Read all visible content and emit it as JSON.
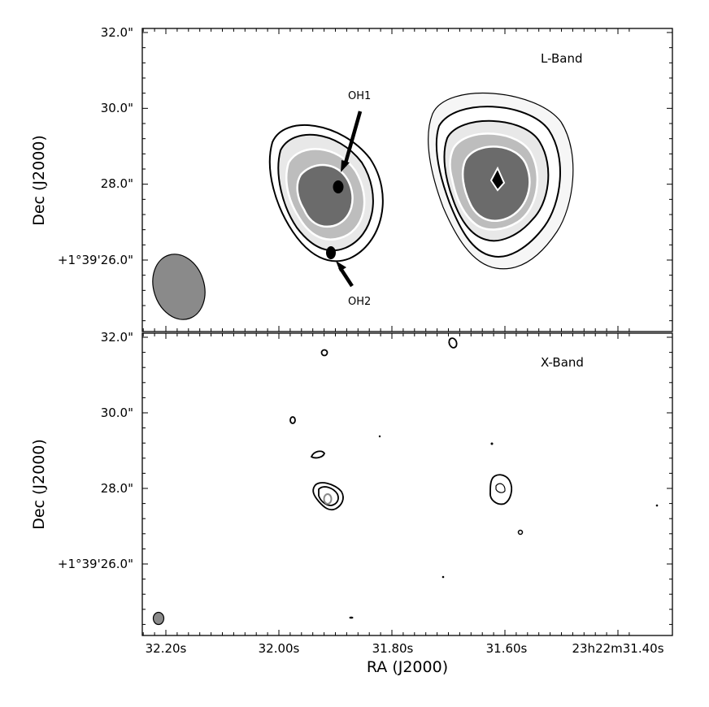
{
  "chart_data": {
    "type": "contour",
    "x_axis": {
      "label": "RA (J2000)",
      "ticks": [
        {
          "value": 32.2,
          "label": "32.20s"
        },
        {
          "value": 32.0,
          "label": "32.00s"
        },
        {
          "value": 31.8,
          "label": "31.80s"
        },
        {
          "value": 31.6,
          "label": "31.60s"
        },
        {
          "value": 31.4,
          "label": "23h22m31.40s"
        }
      ],
      "range": [
        32.31,
        31.37
      ],
      "inverted": true
    },
    "panels": [
      {
        "label": "L-Band",
        "y_axis": {
          "label": "Dec (J2000)",
          "ticks": [
            {
              "value": 32.0,
              "label": "32.0\""
            },
            {
              "value": 30.0,
              "label": "30.0\""
            },
            {
              "value": 28.0,
              "label": "28.0\""
            },
            {
              "value": 26.0,
              "label": "+1°39'26.0\""
            }
          ],
          "range": [
            24.0,
            32.1
          ]
        },
        "sources": [
          {
            "ra": 31.93,
            "dec": 27.8,
            "levels": 5,
            "filled": true
          },
          {
            "ra": 31.63,
            "dec": 28.1,
            "levels": 5,
            "filled": true
          }
        ],
        "annotations": [
          {
            "label": "OH1",
            "ra": 31.9,
            "dec": 27.9
          },
          {
            "label": "OH2",
            "ra": 31.91,
            "dec": 26.3
          }
        ],
        "beam": {
          "ra": 32.17,
          "dec": 25.4
        }
      },
      {
        "label": "X-Band",
        "y_axis": {
          "label": "Dec (J2000)",
          "ticks": [
            {
              "value": 32.0,
              "label": "32.0\""
            },
            {
              "value": 30.0,
              "label": "30.0\""
            },
            {
              "value": 28.0,
              "label": "28.0\""
            },
            {
              "value": 26.0,
              "label": "+1°39'26.0\""
            }
          ],
          "range": [
            24.0,
            32.1
          ]
        },
        "sources": [
          {
            "ra": 31.92,
            "dec": 27.8,
            "levels": 3
          },
          {
            "ra": 31.62,
            "dec": 27.95,
            "levels": 2
          }
        ],
        "beam": {
          "ra": 32.22,
          "dec": 24.4
        }
      }
    ]
  }
}
